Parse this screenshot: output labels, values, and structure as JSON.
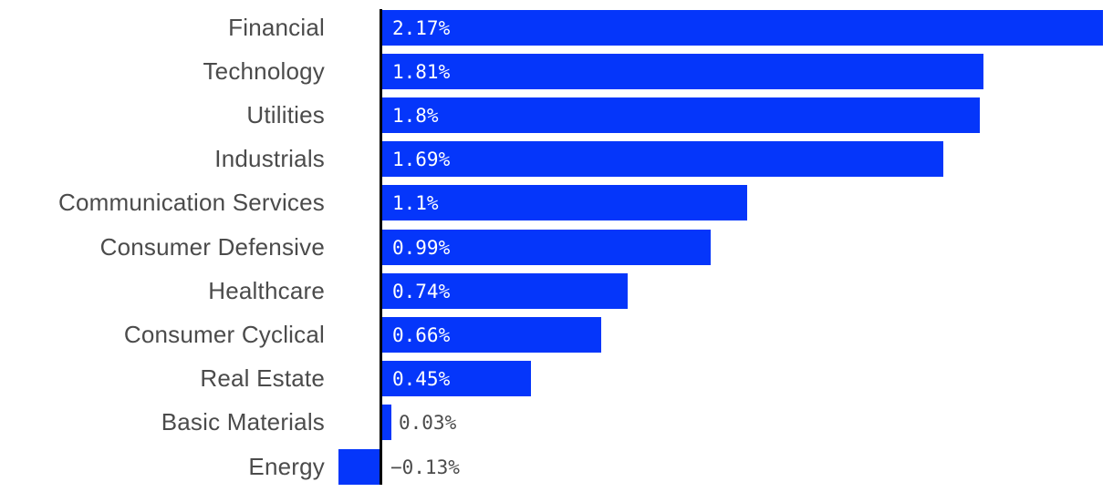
{
  "chart_data": {
    "type": "bar",
    "orientation": "horizontal",
    "title": "",
    "xlabel": "",
    "ylabel": "",
    "grid": false,
    "legend": false,
    "xlim": [
      -0.2,
      2.2
    ],
    "categories": [
      "Financial",
      "Technology",
      "Utilities",
      "Industrials",
      "Communication Services",
      "Consumer Defensive",
      "Healthcare",
      "Consumer Cyclical",
      "Real Estate",
      "Basic Materials",
      "Energy"
    ],
    "values": [
      2.17,
      1.81,
      1.8,
      1.69,
      1.1,
      0.99,
      0.74,
      0.66,
      0.45,
      0.03,
      -0.13
    ],
    "value_labels": [
      "2.17%",
      "1.81%",
      "1.8%",
      "1.69%",
      "1.1%",
      "0.99%",
      "0.74%",
      "0.66%",
      "0.45%",
      "0.03%",
      "−0.13%"
    ],
    "colors": {
      "bar": "#0536fa",
      "category_label": "#4b4b4b",
      "value_label_inside": "#ffffff",
      "value_label_outside": "#4b4b4b",
      "axis_line": "#000000",
      "background": "#ffffff"
    }
  }
}
